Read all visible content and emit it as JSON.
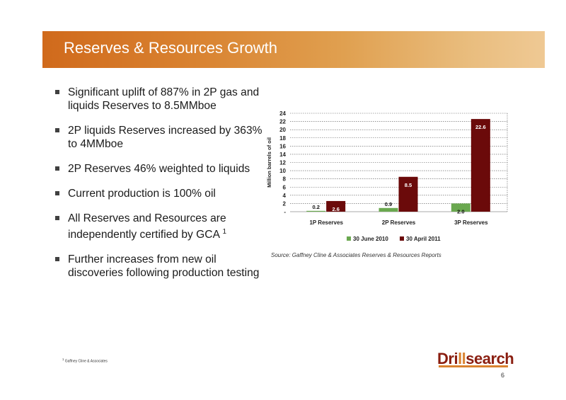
{
  "slide": {
    "title": "Reserves & Resources Growth",
    "bullets": [
      "Significant uplift of 887% in 2P gas and liquids Reserves to 8.5MMboe",
      "2P liquids Reserves increased by 363% to 4MMboe",
      "2P Reserves 46% weighted to liquids",
      "Current production is 100% oil",
      "All Reserves and Resources are independently certified by GCA",
      "Further increases from new oil discoveries following production testing"
    ],
    "bullet5_sup": "1",
    "source": "Source: Gaffney Cline & Associates Reserves & Resources Reports",
    "footnote_mark": "1",
    "footnote": "Gaffney Cline & Associates",
    "logo_pre": "Dri",
    "logo_mid": "ll",
    "logo_post": "search",
    "page_number": "6"
  },
  "chart_data": {
    "type": "bar",
    "categories": [
      "1P Reserves",
      "2P Reserves",
      "3P Reserves"
    ],
    "series": [
      {
        "name": "30 June 2010",
        "values": [
          0.2,
          0.9,
          2.0
        ],
        "color": "#6aa84f"
      },
      {
        "name": "30 April 2011",
        "values": [
          2.6,
          8.5,
          22.6
        ],
        "color": "#6b0a0a"
      }
    ],
    "ylabel": "Million barrels of oil",
    "ylim": [
      0,
      24
    ],
    "yticks": [
      "-",
      "2",
      "4",
      "6",
      "8",
      "10",
      "12",
      "14",
      "16",
      "18",
      "20",
      "22",
      "24"
    ],
    "grid": true,
    "legend": "bottom"
  }
}
